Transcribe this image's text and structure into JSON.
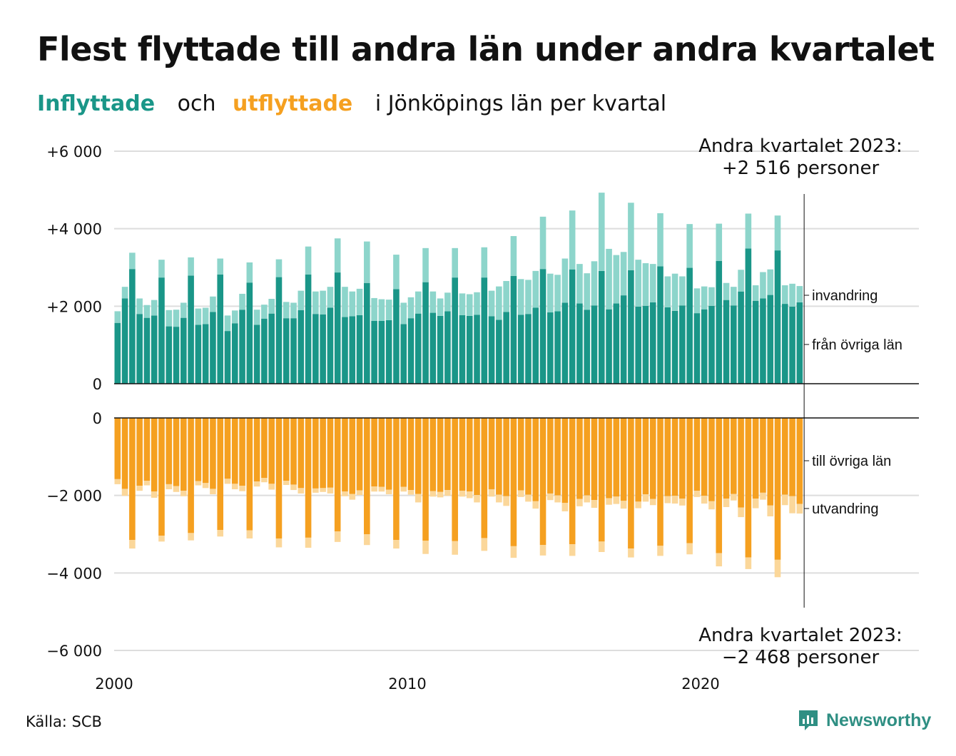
{
  "header": {
    "title": "Flest flyttade till andra län under andra kvartalet",
    "subtitle_in": "Inflyttade",
    "subtitle_och": "och",
    "subtitle_out": "utflyttade",
    "subtitle_rest": "i Jönköpings län per kvartal"
  },
  "footer": {
    "source": "Källa: SCB",
    "logo_text": "Newsworthy"
  },
  "colors": {
    "in_domestic": "#1a9688",
    "in_immigration": "#8dd5cb",
    "out_domestic": "#f5a020",
    "out_emigration": "#fbd79a",
    "grid": "#dddddd",
    "axis": "#111111"
  },
  "chart_data": {
    "type": "bar",
    "x_start": "2000 Q1",
    "x_ticks": [
      "2000",
      "2010",
      "2020"
    ],
    "y_ticks_top": [
      "+6 000",
      "+4 000",
      "+2 000",
      "0"
    ],
    "y_ticks_bottom": [
      "0",
      "−2 000",
      "−4 000",
      "−6 000"
    ],
    "ylim_top": [
      0,
      6000
    ],
    "ylim_bottom": [
      -6000,
      0
    ],
    "series_labels": {
      "immigration": "invandring",
      "in_domestic": "från övriga län",
      "out_domestic": "till övriga län",
      "emigration": "utvandring"
    },
    "annotation_top": [
      "Andra kvartalet 2023:",
      "+2 516 personer"
    ],
    "annotation_bottom": [
      "Andra kvartalet 2023:",
      "−2 468 personer"
    ],
    "inflyttade_fran_ovriga_lan": [
      1570,
      2200,
      2960,
      1800,
      1700,
      1760,
      2740,
      1480,
      1470,
      1700,
      2790,
      1520,
      1540,
      1850,
      2820,
      1360,
      1560,
      1910,
      2610,
      1520,
      1680,
      1810,
      2750,
      1690,
      1690,
      1900,
      2820,
      1800,
      1790,
      1960,
      2870,
      1720,
      1740,
      1770,
      2600,
      1620,
      1620,
      1640,
      2440,
      1540,
      1690,
      1810,
      2620,
      1830,
      1750,
      1870,
      2740,
      1770,
      1750,
      1780,
      2740,
      1740,
      1650,
      1850,
      2780,
      1780,
      1800,
      1960,
      2960,
      1840,
      1870,
      2090,
      2950,
      2070,
      1910,
      2020,
      2910,
      1920,
      2070,
      2280,
      2930,
      1990,
      2010,
      2100,
      3030,
      1970,
      1880,
      2020,
      2990,
      1820,
      1920,
      2010,
      3170,
      2160,
      2020,
      2380,
      3490,
      2140,
      2200,
      2290,
      3440,
      2060,
      1990,
      2100
    ],
    "invandring": [
      300,
      300,
      420,
      400,
      330,
      400,
      460,
      420,
      440,
      390,
      470,
      420,
      420,
      400,
      410,
      400,
      330,
      410,
      520,
      390,
      360,
      380,
      460,
      420,
      400,
      500,
      720,
      580,
      610,
      540,
      880,
      780,
      640,
      680,
      1070,
      590,
      560,
      530,
      890,
      550,
      540,
      570,
      880,
      550,
      450,
      480,
      760,
      560,
      560,
      580,
      780,
      660,
      860,
      800,
      1030,
      920,
      880,
      950,
      1350,
      1000,
      940,
      1140,
      1520,
      1020,
      940,
      1140,
      2020,
      1560,
      1250,
      1120,
      1740,
      1210,
      1100,
      990,
      1370,
      800,
      960,
      750,
      1130,
      640,
      590,
      480,
      960,
      440,
      480,
      560,
      900,
      400,
      680,
      660,
      900,
      480,
      590,
      420
    ],
    "utflyttade_till_ovriga_lan": [
      1580,
      1830,
      3150,
      1750,
      1620,
      1900,
      3040,
      1710,
      1760,
      1880,
      2970,
      1630,
      1680,
      1830,
      2890,
      1570,
      1700,
      1750,
      2900,
      1640,
      1550,
      1700,
      3110,
      1620,
      1720,
      1810,
      3090,
      1820,
      1810,
      1800,
      2930,
      1900,
      1960,
      1870,
      3000,
      1770,
      1780,
      1850,
      3150,
      1780,
      1860,
      1960,
      3170,
      1890,
      1910,
      1860,
      3180,
      1880,
      1900,
      1990,
      3100,
      1840,
      1980,
      2020,
      3310,
      1870,
      1980,
      2150,
      3280,
      1950,
      2000,
      2190,
      3260,
      2090,
      2000,
      2120,
      3190,
      2070,
      2030,
      2140,
      3370,
      2160,
      1970,
      2090,
      3300,
      2020,
      2010,
      2080,
      3230,
      1880,
      2010,
      2150,
      3490,
      2080,
      1960,
      2310,
      3600,
      2080,
      1930,
      2260,
      3660,
      1980,
      2020,
      2220
    ],
    "utvandring": [
      130,
      180,
      220,
      130,
      120,
      160,
      150,
      130,
      150,
      140,
      190,
      110,
      130,
      140,
      170,
      130,
      140,
      140,
      210,
      130,
      110,
      150,
      230,
      110,
      140,
      140,
      260,
      110,
      100,
      150,
      270,
      120,
      150,
      120,
      280,
      130,
      120,
      120,
      220,
      120,
      120,
      220,
      340,
      140,
      140,
      150,
      350,
      150,
      170,
      190,
      330,
      190,
      200,
      250,
      300,
      170,
      180,
      190,
      270,
      170,
      180,
      220,
      300,
      190,
      180,
      200,
      270,
      170,
      190,
      200,
      230,
      170,
      190,
      160,
      260,
      180,
      200,
      180,
      290,
      160,
      200,
      210,
      340,
      220,
      170,
      250,
      300,
      250,
      180,
      280,
      450,
      270,
      440,
      248
    ]
  }
}
